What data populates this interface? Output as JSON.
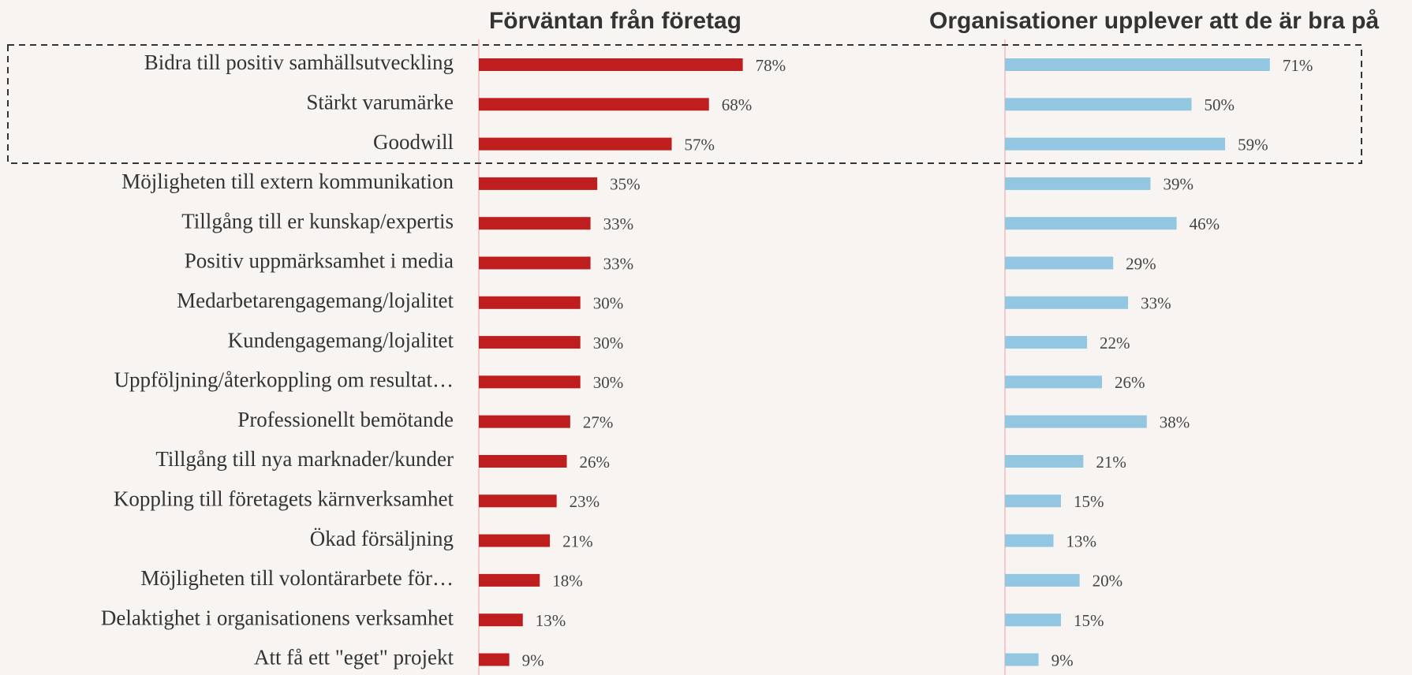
{
  "chart_data": {
    "type": "bar",
    "orientation": "horizontal",
    "categories": [
      "Bidra till positiv samhällsutveckling",
      "Stärkt varumärke",
      "Goodwill",
      "Möjligheten till extern kommunikation",
      "Tillgång till er kunskap/expertis",
      "Positiv uppmärksamhet i media",
      "Medarbetarengagemang/lojalitet",
      "Kundengagemang/lojalitet",
      "Uppföljning/återkoppling om resultat…",
      "Professionellt bemötande",
      "Tillgång till nya marknader/kunder",
      "Koppling till företagets kärnverksamhet",
      "Ökad försäljning",
      "Möjligheten till volontärarbete för…",
      "Delaktighet i organisationens verksamhet",
      "Att få ett \"eget\" projekt"
    ],
    "xlim": [
      0,
      100
    ],
    "series": [
      {
        "name": "Förväntan från företag",
        "color": "#be1e1e",
        "values": [
          78,
          68,
          57,
          35,
          33,
          33,
          30,
          30,
          30,
          27,
          26,
          23,
          21,
          18,
          13,
          9
        ],
        "value_labels": [
          "78%",
          "68%",
          "57%",
          "35%",
          "33%",
          "33%",
          "30%",
          "30%",
          "30%",
          "27%",
          "26%",
          "23%",
          "21%",
          "18%",
          "13%",
          "9%"
        ]
      },
      {
        "name": "Organisationer upplever att de är bra på",
        "color": "#93c6e0",
        "values": [
          71,
          50,
          59,
          39,
          46,
          29,
          33,
          22,
          26,
          38,
          21,
          15,
          13,
          20,
          15,
          9
        ],
        "value_labels": [
          "71%",
          "50%",
          "59%",
          "39%",
          "46%",
          "29%",
          "33%",
          "22%",
          "26%",
          "38%",
          "21%",
          "15%",
          "13%",
          "20%",
          "15%",
          "9%"
        ]
      }
    ]
  }
}
